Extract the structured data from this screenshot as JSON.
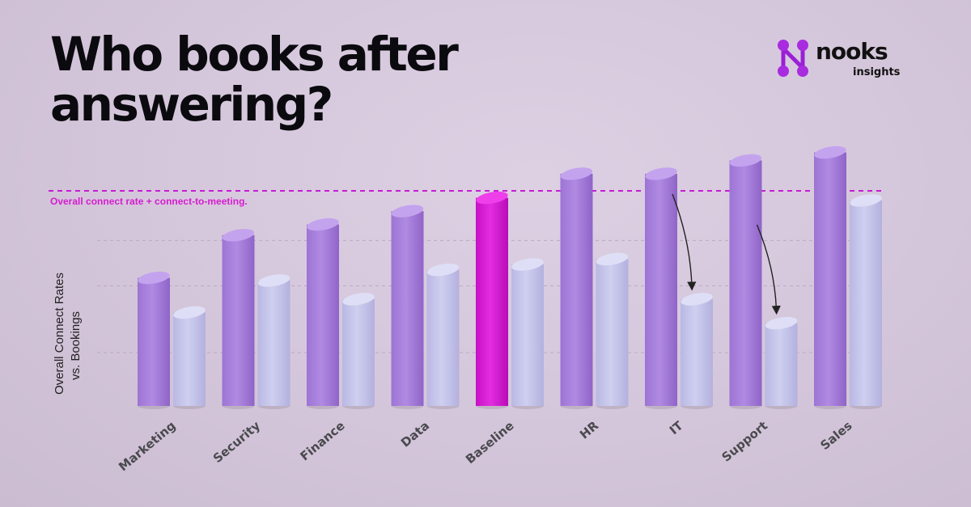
{
  "title_lines": [
    "Who books after",
    "answering?"
  ],
  "brand": {
    "name": "nooks",
    "tagline": "insights",
    "icon": "nooks-logo-icon",
    "color": "#9b1fd6"
  },
  "chart_data": {
    "type": "bar",
    "title": "Who books after answering?",
    "ylabel_lines": [
      "Overall Connect Rates",
      "vs. Bookings"
    ],
    "xlabel": "",
    "categories": [
      "Marketing",
      "Security",
      "Finance",
      "Data",
      "Baseline",
      "HR",
      "IT",
      "Support",
      "Sales"
    ],
    "series": [
      {
        "values": [
          48,
          64,
          68,
          73,
          78,
          87,
          87,
          92,
          95
        ]
      },
      {
        "values": [
          35,
          47,
          40,
          51,
          53,
          55,
          40,
          31,
          77
        ]
      }
    ],
    "highlight_category": "Baseline",
    "reference_line": {
      "value": 80,
      "label": "Overall connect rate +  connect-to-meeting."
    },
    "arrows_on": [
      "IT",
      "Support"
    ],
    "ylim": [
      0,
      100
    ],
    "grid": true,
    "colors": {
      "series1": "#a77fdb",
      "series2": "#c3c3ea",
      "highlight": "#d419d1",
      "reference_line": "#c51cd4",
      "gridline": "#bba9c2"
    }
  }
}
